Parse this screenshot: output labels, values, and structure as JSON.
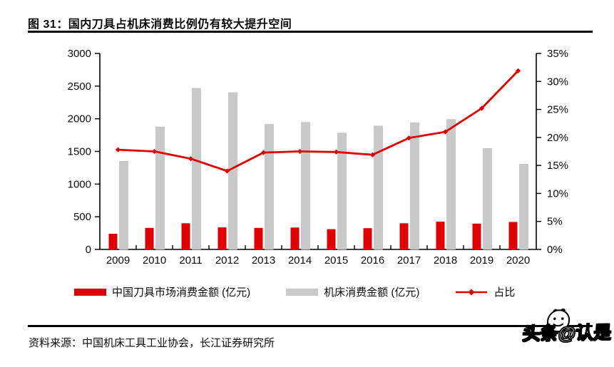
{
  "header": {
    "title": "图 31：国内刀具占机床消费比例仍有较大提升空间"
  },
  "chart_data": {
    "type": "bar",
    "subtype": "combo bar + line, dual axis",
    "title": "国内刀具占机床消费比例仍有较大提升空间",
    "categories": [
      "2009",
      "2010",
      "2011",
      "2012",
      "2013",
      "2014",
      "2015",
      "2016",
      "2017",
      "2018",
      "2019",
      "2020"
    ],
    "series": [
      {
        "name": "中国刀具市场消费金额 (亿元)",
        "type": "bar",
        "axis": "left",
        "color": "#e00000",
        "values": [
          240,
          330,
          400,
          337,
          330,
          335,
          310,
          325,
          400,
          425,
          395,
          420
        ]
      },
      {
        "name": "机床消费金额 (亿元)",
        "type": "bar",
        "axis": "left",
        "color": "#c9c9c9",
        "values": [
          1350,
          1875,
          2465,
          2400,
          1915,
          1945,
          1780,
          1890,
          1940,
          1990,
          1545,
          1305
        ]
      },
      {
        "name": "占比",
        "type": "line",
        "axis": "right",
        "color": "#e00000",
        "values": [
          17.8,
          17.5,
          16.2,
          14.0,
          17.3,
          17.5,
          17.4,
          16.9,
          19.9,
          21.0,
          25.2,
          31.9
        ]
      }
    ],
    "left_axis": {
      "min": 0,
      "max": 3000,
      "step": 500
    },
    "right_axis": {
      "min": 0,
      "max": 35,
      "step": 5,
      "suffix": "%"
    },
    "legend_position": "bottom",
    "grid": false
  },
  "footer": {
    "source": "资料来源：中国机床工具工业协会，长江证券研究所"
  },
  "watermark": {
    "text": "头条@认是"
  },
  "colors": {
    "accent_red": "#e00000",
    "bar_gray": "#c9c9c9",
    "axis_black": "#000000"
  }
}
